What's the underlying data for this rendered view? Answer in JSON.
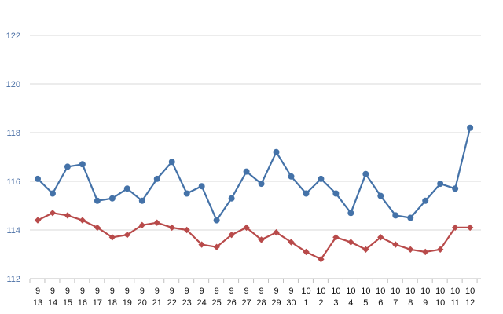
{
  "chart_data": {
    "type": "line",
    "title": "",
    "xlabel": "",
    "ylabel": "",
    "ylim": [
      112,
      122
    ],
    "y_ticks": [
      "112",
      "114",
      "116",
      "118",
      "120",
      "122"
    ],
    "grid": true,
    "legend": "none",
    "x": [
      {
        "m": "9",
        "d": "13"
      },
      {
        "m": "9",
        "d": "14"
      },
      {
        "m": "9",
        "d": "15"
      },
      {
        "m": "9",
        "d": "16"
      },
      {
        "m": "9",
        "d": "17"
      },
      {
        "m": "9",
        "d": "18"
      },
      {
        "m": "9",
        "d": "19"
      },
      {
        "m": "9",
        "d": "20"
      },
      {
        "m": "9",
        "d": "21"
      },
      {
        "m": "9",
        "d": "22"
      },
      {
        "m": "9",
        "d": "23"
      },
      {
        "m": "9",
        "d": "24"
      },
      {
        "m": "9",
        "d": "25"
      },
      {
        "m": "9",
        "d": "26"
      },
      {
        "m": "9",
        "d": "27"
      },
      {
        "m": "9",
        "d": "28"
      },
      {
        "m": "9",
        "d": "29"
      },
      {
        "m": "9",
        "d": "30"
      },
      {
        "m": "10",
        "d": "1"
      },
      {
        "m": "10",
        "d": "2"
      },
      {
        "m": "10",
        "d": "3"
      },
      {
        "m": "10",
        "d": "4"
      },
      {
        "m": "10",
        "d": "5"
      },
      {
        "m": "10",
        "d": "6"
      },
      {
        "m": "10",
        "d": "7"
      },
      {
        "m": "10",
        "d": "8"
      },
      {
        "m": "10",
        "d": "9"
      },
      {
        "m": "10",
        "d": "10"
      },
      {
        "m": "10",
        "d": "11"
      },
      {
        "m": "10",
        "d": "12"
      }
    ],
    "series": [
      {
        "color": "#4472a8",
        "marker": "circle",
        "values": [
          116.1,
          115.5,
          116.6,
          116.7,
          115.2,
          115.3,
          115.7,
          115.2,
          116.1,
          116.8,
          115.5,
          115.8,
          114.4,
          115.3,
          116.4,
          115.9,
          117.2,
          116.2,
          115.5,
          116.1,
          115.5,
          114.7,
          116.3,
          115.4,
          114.6,
          114.5,
          115.2,
          115.9,
          115.7,
          118.2
        ]
      },
      {
        "color": "#b84a4a",
        "marker": "diamond",
        "values": [
          114.4,
          114.7,
          114.6,
          114.4,
          114.1,
          113.7,
          113.8,
          114.2,
          114.3,
          114.1,
          114.0,
          113.4,
          113.3,
          113.8,
          114.1,
          113.6,
          113.9,
          113.5,
          113.1,
          112.8,
          113.7,
          113.5,
          113.2,
          113.7,
          113.4,
          113.2,
          113.1,
          113.2,
          114.1,
          114.1
        ]
      }
    ]
  }
}
